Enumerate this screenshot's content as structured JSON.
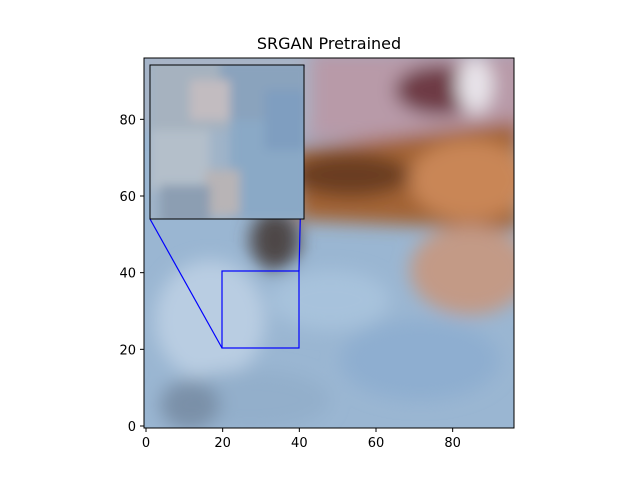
{
  "figure": {
    "title": "SRGAN Pretrained"
  },
  "image": {
    "description_colors": {
      "blue_fabric": "#8fb0d0",
      "brown_hair": "#a8683a",
      "pink_top": "#c7a3b0",
      "dark_gap": "#4a4040"
    }
  },
  "axes": {
    "x_ticks": [
      "0",
      "20",
      "40",
      "60",
      "80"
    ],
    "y_ticks": [
      "0",
      "20",
      "40",
      "60",
      "80"
    ],
    "xlim": [
      0,
      96
    ],
    "ylim": [
      0,
      96
    ]
  },
  "zoom_region": {
    "x_range": [
      20,
      40
    ],
    "y_range": [
      20,
      40
    ],
    "line_color": "#0000ff"
  }
}
